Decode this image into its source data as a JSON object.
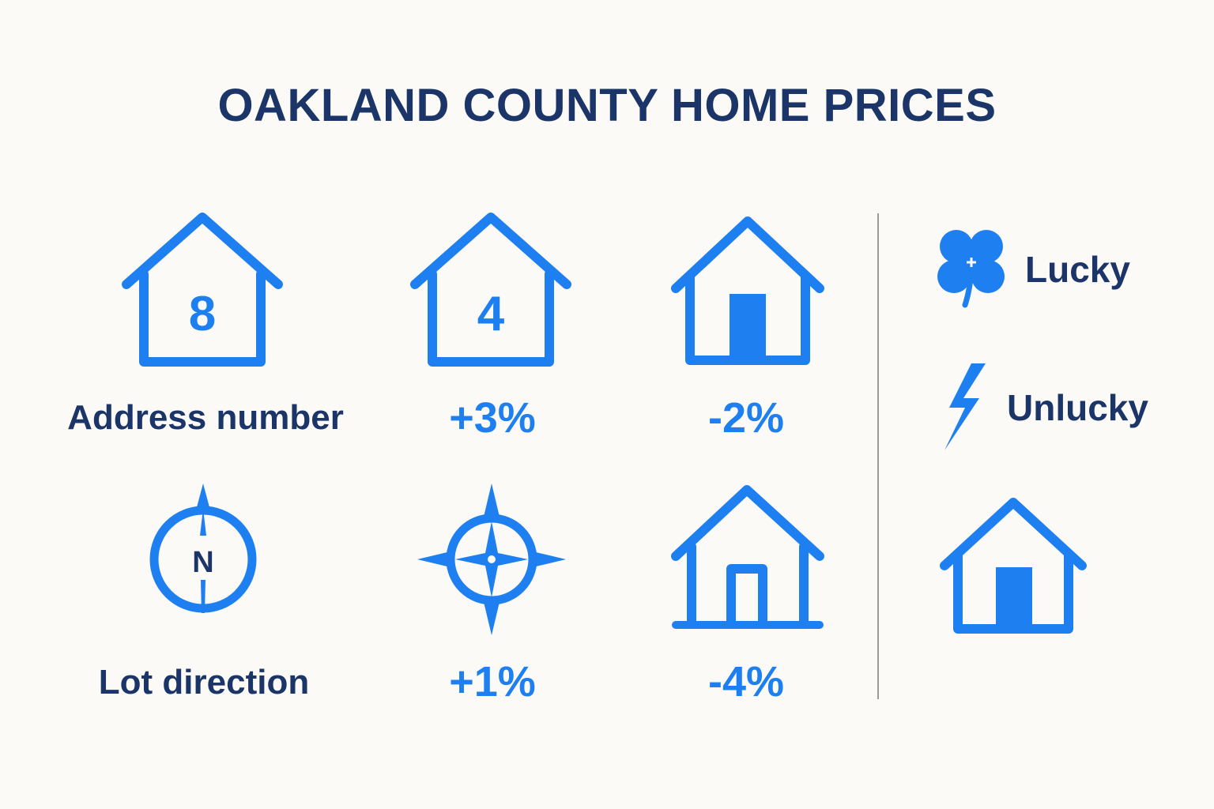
{
  "title": "OAKLAND COUNTY HOME PRICES",
  "colors": {
    "accent": "#1e7ff0",
    "text_dark": "#1c3568",
    "background": "#fbfaf6",
    "divider": "#9a9a9a"
  },
  "rows": {
    "address": {
      "label": "Address number",
      "icons": {
        "first": {
          "icon": "house-icon",
          "digit": "8"
        },
        "second": {
          "icon": "house-icon",
          "digit": "4"
        },
        "third": {
          "icon": "house-door-icon"
        }
      },
      "values": {
        "second": "+3%",
        "third": "-2%"
      }
    },
    "lot": {
      "label": "Lot direction",
      "icons": {
        "first": {
          "icon": "compass-icon",
          "letter": "N"
        },
        "second": {
          "icon": "compass-rose-icon"
        },
        "third": {
          "icon": "house-door-icon"
        }
      },
      "values": {
        "second": "+1%",
        "third": "-4%"
      }
    }
  },
  "legend": {
    "lucky": {
      "icon": "clover-icon",
      "label": "Lucky"
    },
    "unlucky": {
      "icon": "lightning-icon",
      "label": "Unlucky"
    },
    "house": {
      "icon": "house-door-icon"
    }
  }
}
